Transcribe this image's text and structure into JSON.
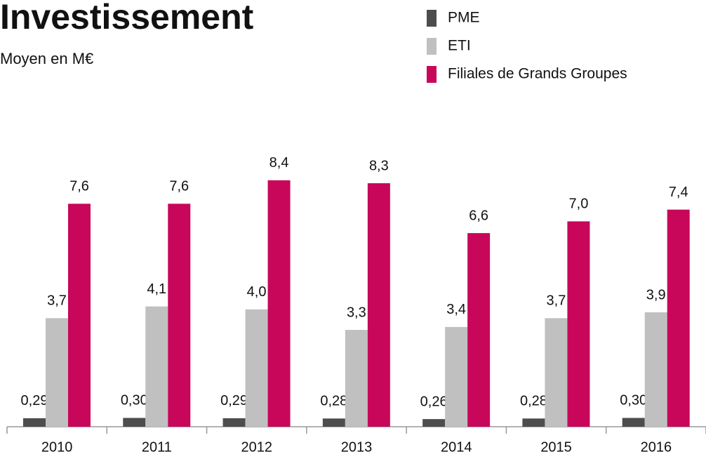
{
  "chart_data": {
    "type": "bar",
    "title": "Investissement",
    "subtitle": "Moyen en M€",
    "categories": [
      "2010",
      "2011",
      "2012",
      "2013",
      "2014",
      "2015",
      "2016"
    ],
    "series": [
      {
        "name": "PME",
        "color": "#4d4d4d",
        "values": [
          0.29,
          0.3,
          0.29,
          0.28,
          0.26,
          0.28,
          0.3
        ],
        "value_labels": [
          "0,29",
          "0,30",
          "0,29",
          "0,28",
          "0,26",
          "0,28",
          "0,30"
        ]
      },
      {
        "name": "ETI",
        "color": "#c0c0c0",
        "values": [
          3.7,
          4.1,
          4.0,
          3.3,
          3.4,
          3.7,
          3.9
        ],
        "value_labels": [
          "3,7",
          "4,1",
          "4,0",
          "3,3",
          "3,4",
          "3,7",
          "3,9"
        ]
      },
      {
        "name": "Filiales de Grands Groupes",
        "color": "#c8075a",
        "values": [
          7.6,
          7.6,
          8.4,
          8.3,
          6.6,
          7.0,
          7.4
        ],
        "value_labels": [
          "7,6",
          "7,6",
          "8,4",
          "8,3",
          "6,6",
          "7,0",
          "7,4"
        ]
      }
    ]
  }
}
